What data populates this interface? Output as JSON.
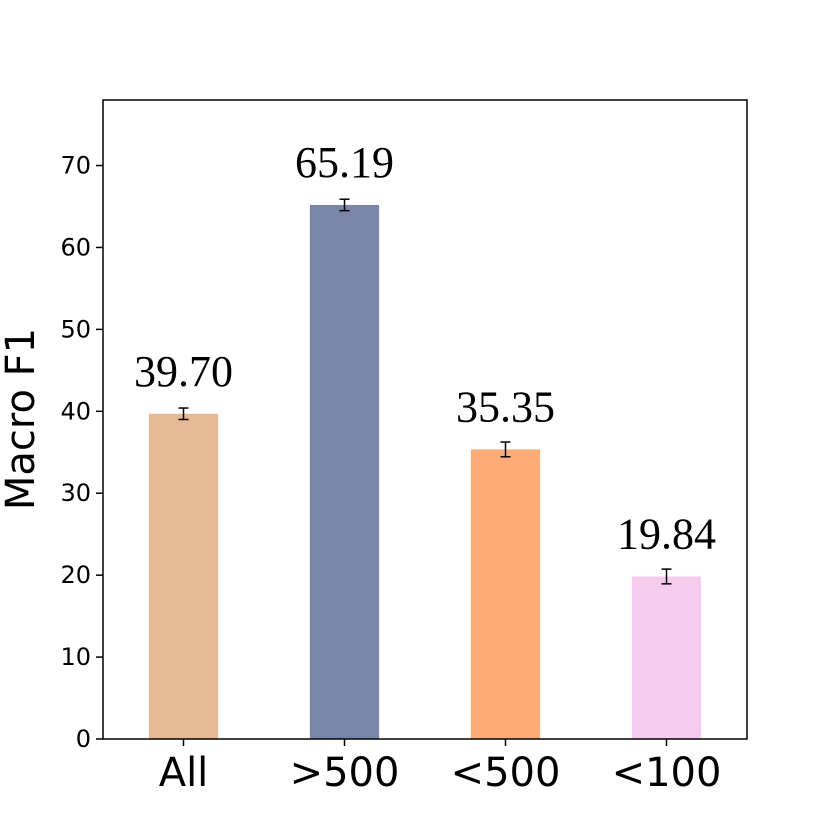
{
  "chart_data": {
    "type": "bar",
    "title": "",
    "xlabel": "",
    "ylabel": "Macro F1",
    "categories": [
      "All",
      ">500",
      "<500",
      "<100"
    ],
    "values": [
      39.7,
      65.19,
      35.35,
      19.84
    ],
    "value_labels": [
      "39.70",
      "65.19",
      "35.35",
      "19.84"
    ],
    "errors": [
      0.7,
      0.7,
      0.9,
      0.9
    ],
    "colors": [
      "#e5b993",
      "#7986a7",
      "#fdab77",
      "#f5cbee"
    ],
    "ylim": [
      0,
      78
    ],
    "yticks": [
      0,
      10,
      20,
      30,
      40,
      50,
      60,
      70
    ],
    "grid": false,
    "legend": "none"
  }
}
